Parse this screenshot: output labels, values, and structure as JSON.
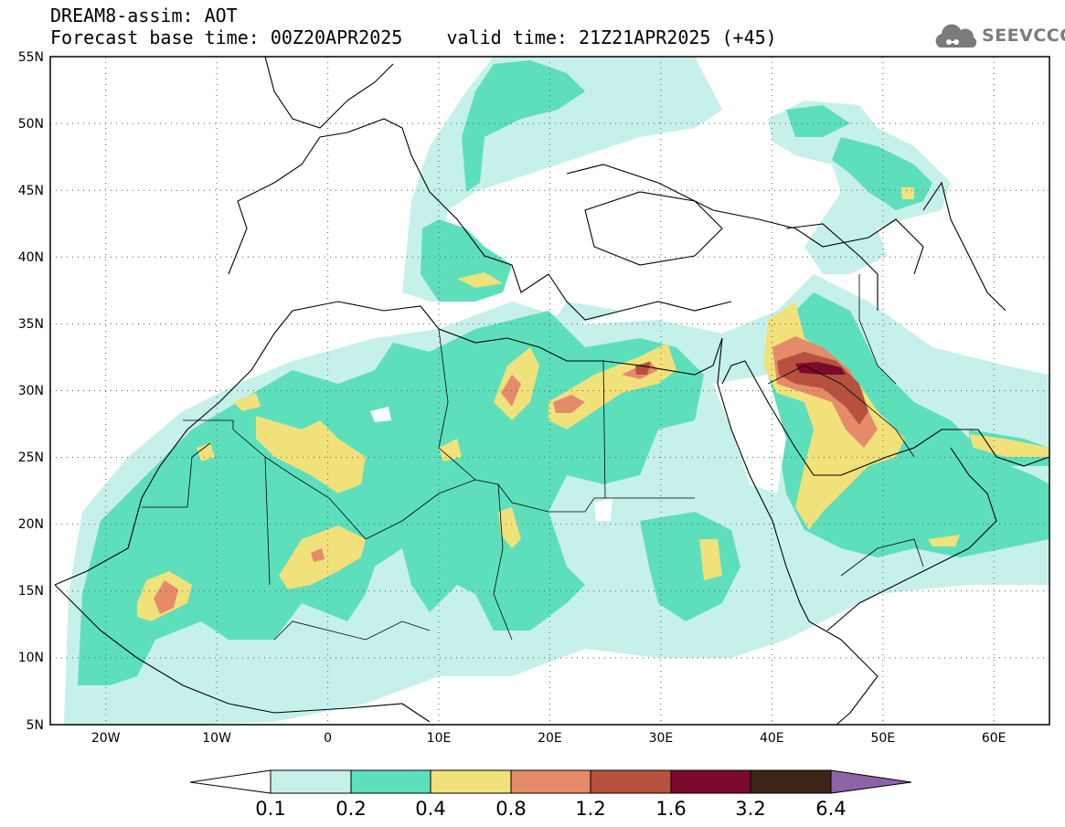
{
  "header": {
    "title_line1": "DREAM8-assim: AOT",
    "title_line2": "Forecast base time: 00Z20APR2025    valid time: 21Z21APR2025 (+45)"
  },
  "logo": {
    "text": "SEEVCCC",
    "icon": "cloud-icon",
    "color": "#7b7b7b"
  },
  "map": {
    "lon_range": [
      -25,
      65
    ],
    "lat_range": [
      5,
      55
    ],
    "lat_ticks": [
      "55N",
      "50N",
      "45N",
      "40N",
      "35N",
      "30N",
      "25N",
      "20N",
      "15N",
      "10N",
      "5N"
    ],
    "lon_ticks": [
      "20W",
      "10W",
      "0",
      "10E",
      "20E",
      "30E",
      "40E",
      "50E",
      "60E"
    ],
    "grid": "dotted",
    "layers": [
      {
        "name": "0.1-0.2",
        "color": "#c6f1eb"
      },
      {
        "name": "0.2-0.4",
        "color": "#5ddfbc"
      },
      {
        "name": "0.4-0.8",
        "color": "#f1e17a"
      },
      {
        "name": "0.8-1.2",
        "color": "#e58b6a"
      },
      {
        "name": "1.2-1.6",
        "color": "#b5513e"
      },
      {
        "name": "1.6-3.2",
        "color": "#7b0a2c"
      }
    ]
  },
  "colorbar": {
    "labels": [
      "0.1",
      "0.2",
      "0.4",
      "0.8",
      "1.2",
      "1.6",
      "3.2",
      "6.4"
    ],
    "colors": [
      "#c6f1eb",
      "#5ddfbc",
      "#f1e17a",
      "#e58b6a",
      "#b5513e",
      "#7b0a2c",
      "#3d2414"
    ],
    "low_color": "#ffffff",
    "high_color": "#8e63a8"
  }
}
